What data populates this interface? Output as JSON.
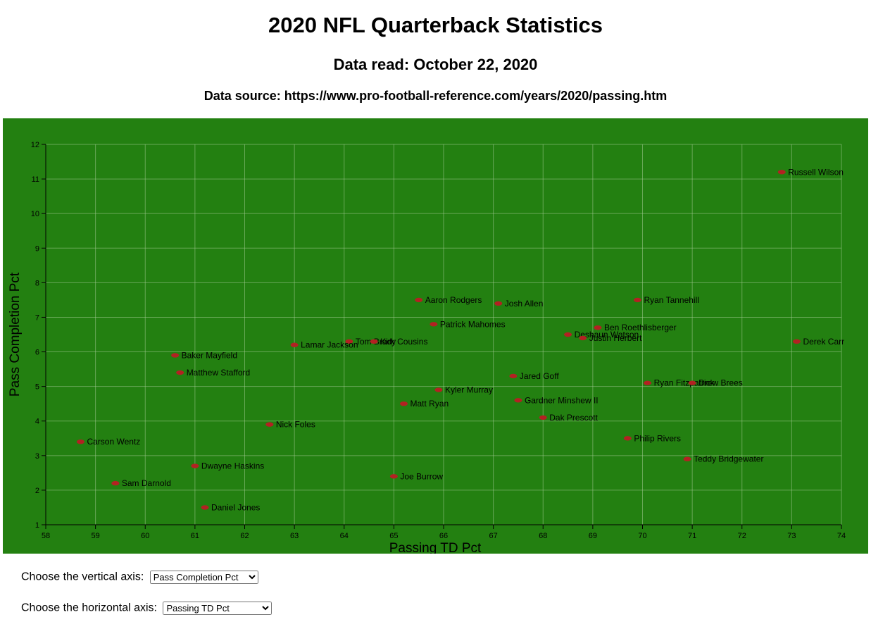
{
  "page": {
    "title": "2020 NFL Quarterback Statistics",
    "subtitle": "Data read: October 22, 2020",
    "source": "Data source: https://www.pro-football-reference.com/years/2020/passing.htm"
  },
  "controls": {
    "vertical_label": "Choose the vertical axis:",
    "vertical_selected": "Pass Completion Pct",
    "horizontal_label": "Choose the horizontal axis:",
    "horizontal_selected": "Passing TD Pct"
  },
  "colors": {
    "plot_background": "#238011",
    "point": "#b22222",
    "grid": "#a0c890"
  },
  "chart_data": {
    "type": "scatter",
    "xlabel": "Passing TD Pct",
    "ylabel": "Pass Completion Pct",
    "xlim": [
      58,
      74
    ],
    "ylim": [
      1,
      12
    ],
    "xticks": [
      58,
      59,
      60,
      61,
      62,
      63,
      64,
      65,
      66,
      67,
      68,
      69,
      70,
      71,
      72,
      73,
      74
    ],
    "yticks": [
      1,
      2,
      3,
      4,
      5,
      6,
      7,
      8,
      9,
      10,
      11,
      12
    ],
    "grid": true,
    "points": [
      {
        "label": "Russell Wilson",
        "x": 72.8,
        "y": 11.2
      },
      {
        "label": "Aaron Rodgers",
        "x": 65.5,
        "y": 7.5
      },
      {
        "label": "Josh Allen",
        "x": 67.1,
        "y": 7.4
      },
      {
        "label": "Ryan Tannehill",
        "x": 69.9,
        "y": 7.5
      },
      {
        "label": "Patrick Mahomes",
        "x": 65.8,
        "y": 6.8
      },
      {
        "label": "Ben Roethlisberger",
        "x": 69.1,
        "y": 6.7
      },
      {
        "label": "Deshaun Watson",
        "x": 68.5,
        "y": 6.5
      },
      {
        "label": "Justin Herbert",
        "x": 68.8,
        "y": 6.4
      },
      {
        "label": "Derek Carr",
        "x": 73.1,
        "y": 6.3
      },
      {
        "label": "Tom Brady",
        "x": 64.1,
        "y": 6.3
      },
      {
        "label": "Kirk Cousins",
        "x": 64.6,
        "y": 6.3
      },
      {
        "label": "Lamar Jackson",
        "x": 63.0,
        "y": 6.2
      },
      {
        "label": "Baker Mayfield",
        "x": 60.6,
        "y": 5.9
      },
      {
        "label": "Matthew Stafford",
        "x": 60.7,
        "y": 5.4
      },
      {
        "label": "Jared Goff",
        "x": 67.4,
        "y": 5.3
      },
      {
        "label": "Ryan Fitzpatrick",
        "x": 70.1,
        "y": 5.1
      },
      {
        "label": "Drew Brees",
        "x": 71.0,
        "y": 5.1
      },
      {
        "label": "Kyler Murray",
        "x": 65.9,
        "y": 4.9
      },
      {
        "label": "Gardner Minshew II",
        "x": 67.5,
        "y": 4.6
      },
      {
        "label": "Matt Ryan",
        "x": 65.2,
        "y": 4.5
      },
      {
        "label": "Dak Prescott",
        "x": 68.0,
        "y": 4.1
      },
      {
        "label": "Nick Foles",
        "x": 62.5,
        "y": 3.9
      },
      {
        "label": "Philip Rivers",
        "x": 69.7,
        "y": 3.5
      },
      {
        "label": "Carson Wentz",
        "x": 58.7,
        "y": 3.4
      },
      {
        "label": "Teddy Bridgewater",
        "x": 70.9,
        "y": 2.9
      },
      {
        "label": "Dwayne Haskins",
        "x": 61.0,
        "y": 2.7
      },
      {
        "label": "Joe Burrow",
        "x": 65.0,
        "y": 2.4
      },
      {
        "label": "Sam Darnold",
        "x": 59.4,
        "y": 2.2
      },
      {
        "label": "Daniel Jones",
        "x": 61.2,
        "y": 1.5
      }
    ]
  }
}
